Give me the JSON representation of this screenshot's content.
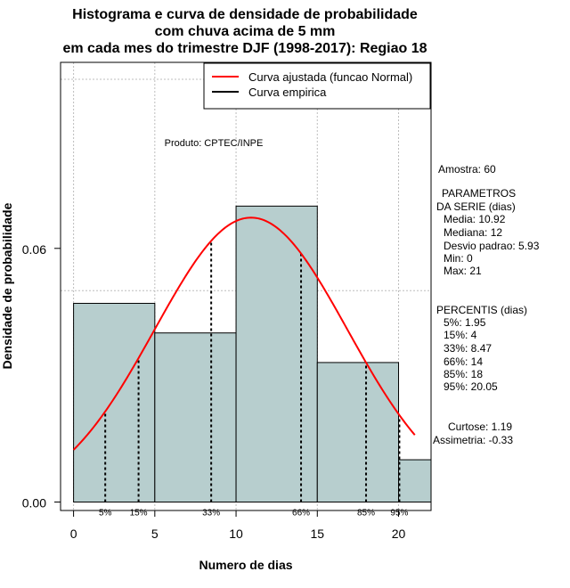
{
  "chart_data": {
    "type": "histogram",
    "title_lines": [
      "Histograma e curva de densidade de probabilidade",
      "com chuva acima de 5 mm",
      "em cada mes do trimestre DJF (1998-2017): Regiao 18"
    ],
    "xlabel": "Numero de dias",
    "ylabel": "Densidade de probabilidade",
    "xlim": [
      -0.8,
      22
    ],
    "ylim": [
      -0.002,
      0.104
    ],
    "x_ticks": [
      0,
      5,
      10,
      15,
      20
    ],
    "y_ticks": [
      0.0,
      0.06
    ],
    "y_tick_labels": [
      "0.00",
      "0.06"
    ],
    "grid": true,
    "bins": [
      {
        "x0": 0,
        "x1": 5,
        "density": 0.047
      },
      {
        "x0": 5,
        "x1": 10,
        "density": 0.04
      },
      {
        "x0": 10,
        "x1": 15,
        "density": 0.07
      },
      {
        "x0": 15,
        "x1": 20,
        "density": 0.033
      },
      {
        "x0": 20,
        "x1": 22,
        "density": 0.01
      }
    ],
    "bar_color": "#b7cece",
    "normal_curve": {
      "mean": 10.92,
      "sd": 5.93,
      "x_from": 0,
      "x_to": 21,
      "color": "#ff0000"
    },
    "percentile_lines": [
      {
        "label": "5%",
        "x": 1.95
      },
      {
        "label": "15%",
        "x": 4
      },
      {
        "label": "33%",
        "x": 8.47
      },
      {
        "label": "66%",
        "x": 14
      },
      {
        "label": "85%",
        "x": 18
      },
      {
        "label": "95%",
        "x": 20.05
      }
    ],
    "legend": {
      "position": "top-right",
      "items": [
        {
          "label": "Curva ajustada (funcao Normal)",
          "color": "#ff0000"
        },
        {
          "label": "Curva empirica",
          "color": "#000000"
        }
      ]
    },
    "annotation": "Produto: CPTEC/INPE"
  },
  "stats_panel": {
    "sample": "Amostra: 60",
    "params_title_1": "PARAMETROS",
    "params_title_2": "DA SERIE (dias)",
    "params": [
      "Media: 10.92",
      "Mediana: 12",
      "Desvio padrao: 5.93",
      "Min: 0",
      "Max: 21"
    ],
    "percentis_title": "PERCENTIS (dias)",
    "percentis": [
      "5%: 1.95",
      "15%: 4",
      "33%: 8.47",
      "66%: 14",
      "85%: 18",
      "95%: 20.05"
    ],
    "curtose": "Curtose: 1.19",
    "assimetria": "Assimetria: -0.33"
  }
}
